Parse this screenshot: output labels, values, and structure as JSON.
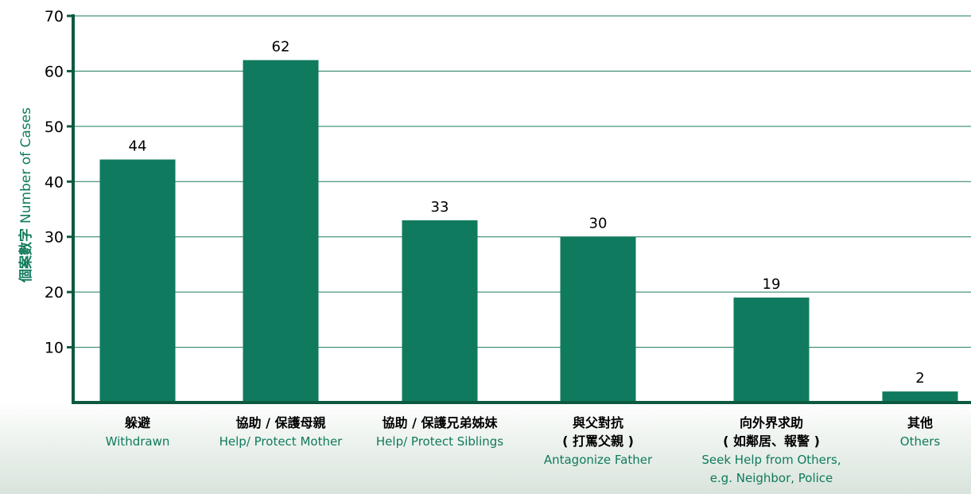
{
  "chart_data": {
    "type": "bar",
    "title": "",
    "ylabel_zh": "個案數字",
    "ylabel_en": "Number of Cases",
    "ylim": [
      0,
      70
    ],
    "yticks": [
      10,
      20,
      30,
      40,
      50,
      60,
      70
    ],
    "grid": true,
    "categories": [
      {
        "zh": "躲避",
        "zh2": "",
        "en": "Withdrawn",
        "en2": ""
      },
      {
        "zh": "協助 / 保護母親",
        "zh2": "",
        "en": "Help/ Protect Mother",
        "en2": ""
      },
      {
        "zh": "協助 / 保護兄弟姊妹",
        "zh2": "",
        "en": "Help/ Protect Siblings",
        "en2": ""
      },
      {
        "zh": "與父對抗",
        "zh2": "( 打罵父親 )",
        "en": "Antagonize Father",
        "en2": ""
      },
      {
        "zh": "向外界求助",
        "zh2": "( 如鄰居、報警 )",
        "en": "Seek Help from Others,",
        "en2": "e.g. Neighbor, Police"
      },
      {
        "zh": "其他",
        "zh2": "",
        "en": "Others",
        "en2": ""
      }
    ],
    "values": [
      44,
      62,
      33,
      30,
      19,
      2
    ],
    "colors": {
      "bar": "#107a5e",
      "axis": "#0c5a40",
      "grid": "#1a7a5a",
      "accent_text": "#0f7a5c"
    }
  }
}
